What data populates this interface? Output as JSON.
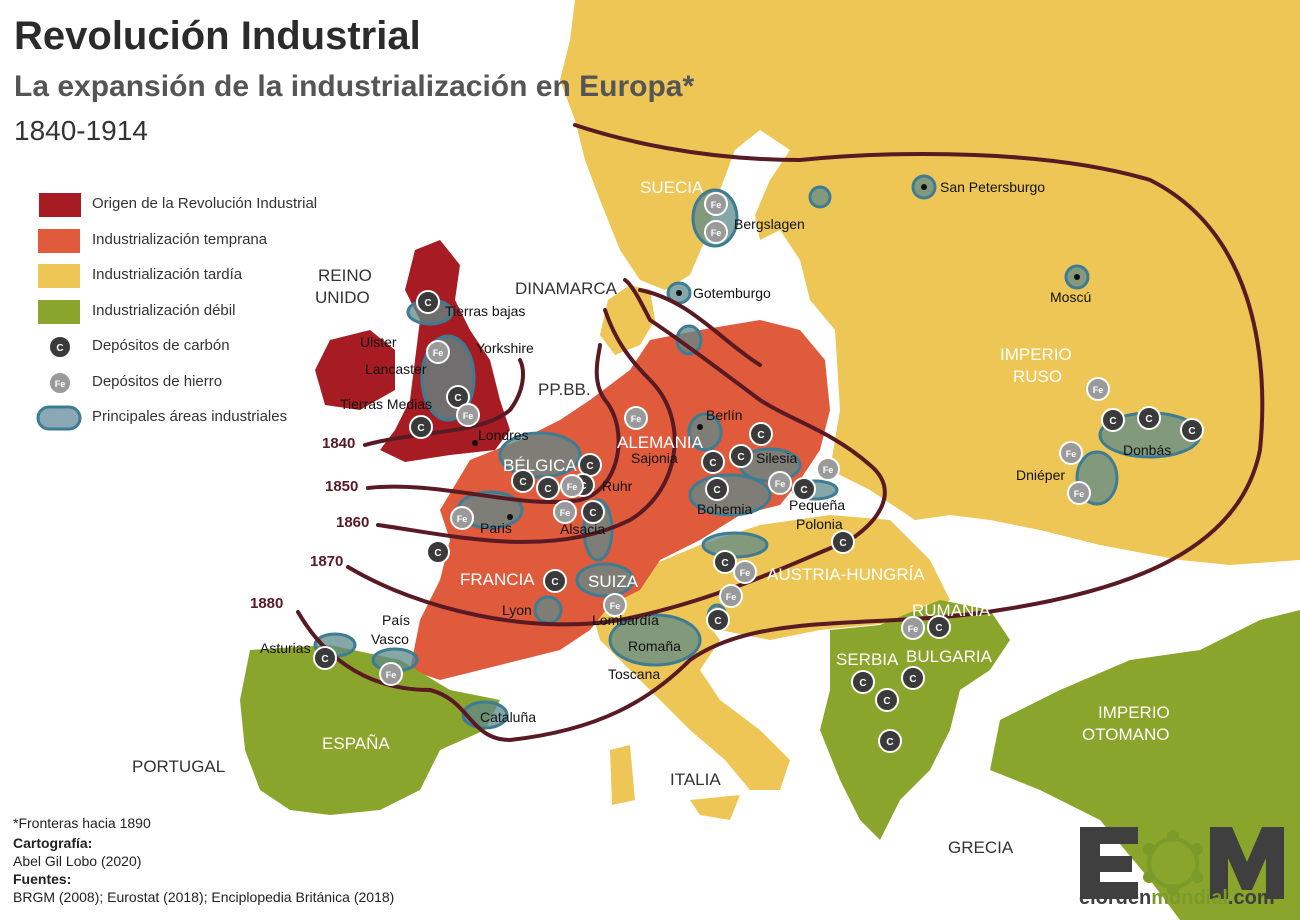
{
  "title": "Revolución Industrial",
  "subtitle": "La expansión de la industrialización en Europa*",
  "years": "1840-1914",
  "legend": [
    {
      "label": "Origen de la Revolución Industrial",
      "color": "#a71c22",
      "kind": "box"
    },
    {
      "label": "Industrialización temprana",
      "color": "#e05a3c",
      "kind": "box"
    },
    {
      "label": "Industrialización tardía",
      "color": "#eec655",
      "kind": "box"
    },
    {
      "label": "Industrialización débil",
      "color": "#8aa52b",
      "kind": "box"
    },
    {
      "label": "Depósitos de carbón",
      "icon": "coal-deposit-icon",
      "symbol": "C",
      "kind": "coal"
    },
    {
      "label": "Depósitos de hierro",
      "icon": "iron-deposit-icon",
      "symbol": "Fe",
      "kind": "iron"
    },
    {
      "label": "Principales áreas industriales",
      "color": "#8ba9b5",
      "kind": "area"
    }
  ],
  "colors": {
    "sea": "#ffffff",
    "origin": "#a71c22",
    "early": "#e05a3c",
    "late": "#eec655",
    "weak": "#8aa52b",
    "industrial_area": "#5d8a8a",
    "industrial_border": "#3e7c93",
    "expansion_line": "#5a1a24",
    "coal": "#3a3a3a",
    "iron": "#9a9a9a"
  },
  "countries": {
    "reino_unido": "REINO\nUNIDO",
    "dinamarca": "DINAMARCA",
    "suecia": "SUECIA",
    "ppbb": "PP.BB.",
    "belgica": "BÉLGICA",
    "alemania": "ALEMANIA",
    "francia": "FRANCIA",
    "suiza": "SUIZA",
    "austria_hungria": "AUSTRIA-HUNGRÍA",
    "imperio_ruso": "IMPERIO\nRUSO",
    "rumania": "RUMANÍA",
    "serbia": "SERBIA",
    "bulgaria": "BULGARIA",
    "imperio_otomano": "IMPERIO\nOTOMANO",
    "espana": "ESPAÑA",
    "portugal": "PORTUGAL",
    "italia": "ITALIA",
    "grecia": "GRECIA"
  },
  "places": {
    "tierras_bajas": "Tierras bajas",
    "yorkshire": "Yorkshire",
    "ulster": "Ulster",
    "lancaster": "Lancaster",
    "tierras_medias": "Tierras Medias",
    "londres": "Londres",
    "bergslagen": "Bergslagen",
    "san_petersburgo": "San Petersburgo",
    "gotemburgo": "Gotemburgo",
    "moscu": "Moscú",
    "berlin": "Berlín",
    "sajonia": "Sajonia",
    "silesia": "Silesia",
    "ruhr": "Ruhr",
    "paris": "Paris",
    "alsacia": "Alsacia",
    "bohemia": "Bohemia",
    "pequena_polonia": "Pequeña\nPolonia",
    "donbas": "Donbás",
    "dnieper": "Dniéper",
    "lyon": "Lyon",
    "lombardia": "Lombardía",
    "romana": "Romaña",
    "toscana": "Toscana",
    "asturias": "Asturias",
    "pais_vasco": "País\nVasco",
    "cataluna": "Cataluña"
  },
  "expansion_years": [
    "1840",
    "1850",
    "1860",
    "1870",
    "1880"
  ],
  "footer": {
    "note": "*Fronteras hacia 1890",
    "cartography_label": "Cartografía:",
    "cartography_value": "Abel Gil Lobo (2020)",
    "sources_label": "Fuentes:",
    "sources_value": "BRGM (2008); Eurostat (2018); Enciplopedia Británica (2018)"
  },
  "brand": {
    "logo_letters": "EOM",
    "site_prefix": "elorden",
    "site_highlight": "mundial",
    "site_suffix": ".com"
  }
}
